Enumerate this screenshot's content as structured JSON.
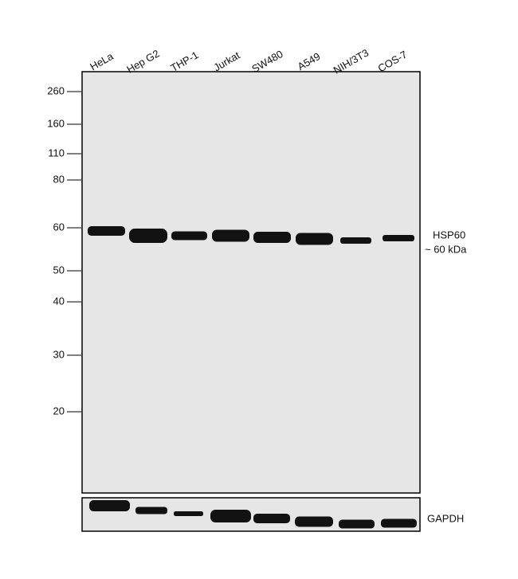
{
  "lanes": [
    "HeLa",
    "Hep G2",
    "THP-1",
    "Jurkat",
    "SW480",
    "A549",
    "NIH/3T3",
    "COS-7"
  ],
  "markers": [
    260,
    160,
    110,
    80,
    60,
    50,
    40,
    30,
    20
  ],
  "labels": {
    "target": "HSP60",
    "size": "~ 60 kDa",
    "loading": "GAPDH"
  }
}
